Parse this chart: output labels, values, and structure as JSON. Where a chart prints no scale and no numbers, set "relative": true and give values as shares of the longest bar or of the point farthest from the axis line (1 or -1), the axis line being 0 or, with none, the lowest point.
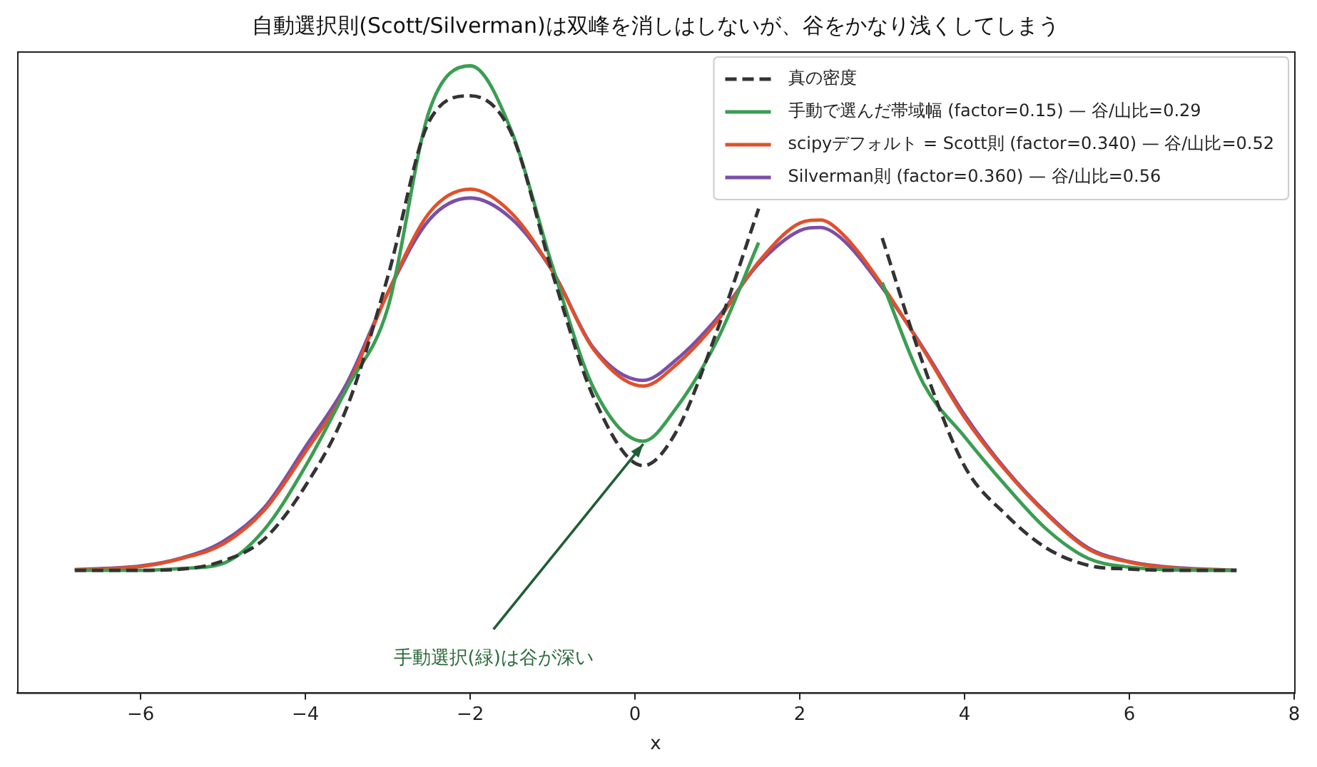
{
  "chart_data": {
    "type": "line",
    "title": "自動選択則(Scott/Silverman)は双峰を消しはしないが、谷をかなり浅くしてしまう",
    "xlabel": "x",
    "relative": true,
    "x": [
      -6.8,
      -6,
      -5.5,
      -5,
      -4.5,
      -4,
      -3.5,
      -3,
      -2.5,
      -2,
      -1.5,
      -1,
      -0.5,
      0.1,
      0.5,
      1,
      1.5,
      2,
      2.25,
      2.5,
      3,
      3.5,
      4,
      4.5,
      5,
      5.5,
      6,
      6.5,
      7.3
    ],
    "series": [
      {
        "name": "真の密度",
        "color": "#333333",
        "line_style": "dashed",
        "values": [
          0.195,
          0.195,
          0.197,
          0.21,
          0.245,
          0.33,
          0.454,
          0.664,
          0.911,
          0.952,
          0.892,
          0.668,
          0.47,
          0.362,
          0.416,
          0.579,
          0.772,
          null,
          null,
          null,
          0.725,
          0.523,
          0.361,
          0.284,
          0.23,
          0.203,
          0.197,
          0.195,
          0.195
        ]
      },
      {
        "name": "手動で選んだ帯域幅 (factor=0.15) — 谷/山比=0.29",
        "color": "#3a9e52",
        "line_style": "solid",
        "values": [
          0.195,
          0.195,
          0.198,
          0.206,
          0.26,
          0.361,
          0.485,
          0.614,
          0.927,
          1,
          0.896,
          0.679,
          0.485,
          0.401,
          0.454,
          0.563,
          0.718,
          null,
          null,
          null,
          0.654,
          0.493,
          0.408,
          0.33,
          0.26,
          0.214,
          0.2,
          0.196,
          0.195
        ]
      },
      {
        "name": "scipyデフォルト = Scott則 (factor=0.340) — 谷/山比=0.52",
        "color": "#e0502a",
        "line_style": "solid",
        "values": [
          0.196,
          0.201,
          0.214,
          0.237,
          0.291,
          0.384,
          0.485,
          0.638,
          0.765,
          0.803,
          0.765,
          0.672,
          0.547,
          0.489,
          0.523,
          0.593,
          0.687,
          0.749,
          0.754,
          0.734,
          0.65,
          0.547,
          0.439,
          0.354,
          0.284,
          0.229,
          0.208,
          0.199,
          0.195
        ]
      },
      {
        "name": "Silverman則 (factor=0.360) — 谷/山比=0.56",
        "color": "#7b4fa8",
        "line_style": "solid",
        "values": [
          0.196,
          0.202,
          0.215,
          0.241,
          0.295,
          0.392,
          0.493,
          0.638,
          0.754,
          0.789,
          0.756,
          0.672,
          0.549,
          0.498,
          0.531,
          0.598,
          0.684,
          0.737,
          0.742,
          0.725,
          0.646,
          0.549,
          0.443,
          0.356,
          0.286,
          0.231,
          0.209,
          0.2,
          0.195
        ]
      }
    ],
    "annotations": [
      {
        "text": "手動選択(緑)は谷が深い",
        "x": 0.1,
        "y": 0.401
      }
    ],
    "xlim": [
      -7.5,
      8
    ],
    "xticks": [
      -6,
      -4,
      -2,
      0,
      2,
      4,
      6,
      8
    ],
    "legend": "top right",
    "marker": "none",
    "grid": false
  }
}
